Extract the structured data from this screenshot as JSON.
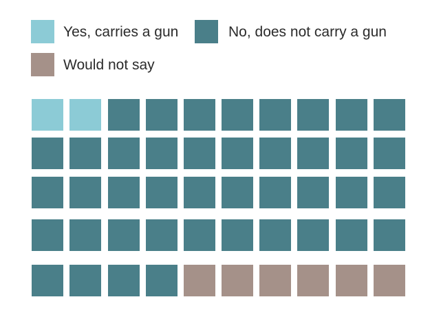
{
  "chart_data": {
    "type": "waffle",
    "title": "",
    "total_cells": 50,
    "columns": 10,
    "rows": 5,
    "categories": [
      {
        "name": "Yes, carries a gun",
        "count": 2,
        "color": "#8ccbd6"
      },
      {
        "name": "No, does not carry a gun",
        "count": 42,
        "color": "#4a7f89"
      },
      {
        "name": "Would not say",
        "count": 6,
        "color": "#a59189"
      }
    ],
    "legend": {
      "placement": "top-left",
      "items": [
        {
          "label": "Yes, carries a gun",
          "color": "#8ccbd6"
        },
        {
          "label": "No, does not carry a gun",
          "color": "#4a7f89"
        },
        {
          "label": "Would not say",
          "color": "#a59189"
        }
      ]
    }
  }
}
